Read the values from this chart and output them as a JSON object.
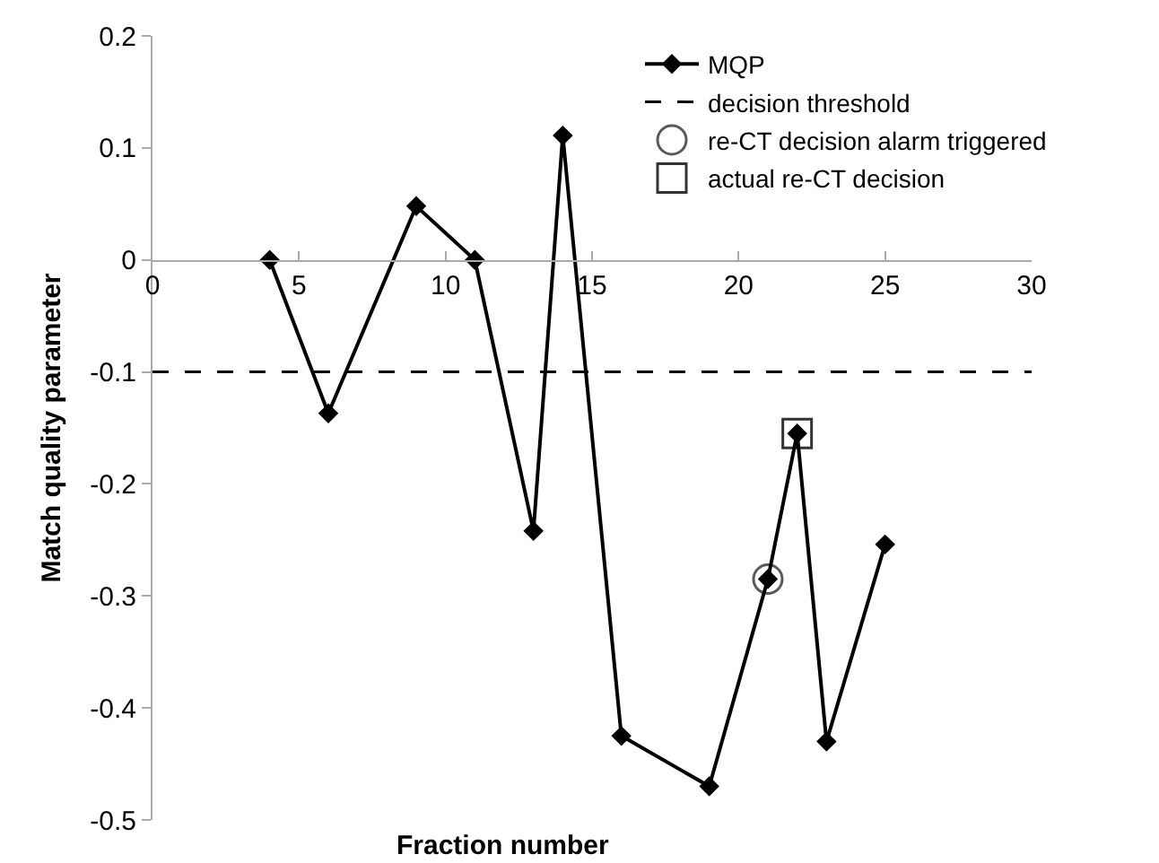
{
  "chart_data": {
    "type": "line",
    "xlabel": "Fraction number",
    "ylabel": "Match quality parameter",
    "series": [
      {
        "name": "MQP",
        "color": "#000000",
        "marker": "diamond",
        "x": [
          4,
          6,
          9,
          11,
          13,
          14,
          16,
          19,
          21,
          22,
          23,
          25
        ],
        "values": [
          0,
          -0.137,
          0.048,
          0,
          -0.242,
          0.111,
          -0.425,
          -0.47,
          -0.285,
          -0.155,
          -0.43,
          -0.254
        ]
      },
      {
        "name": "re-CT decision alarm triggered",
        "color": "#595959",
        "type": "scatter",
        "marker": "circle",
        "x": [
          21
        ],
        "values": [
          -0.285
        ]
      },
      {
        "name": "actual re-CT decision",
        "color": "#333333",
        "type": "scatter",
        "marker": "square",
        "x": [
          22
        ],
        "values": [
          -0.155
        ]
      }
    ],
    "ref_lines": [
      {
        "axis": "y",
        "value": -0.1,
        "label": "decision threshold",
        "color": "#000000",
        "line_style": "dashed"
      }
    ],
    "xlim": [
      0,
      30
    ],
    "xticks": [
      0,
      5,
      10,
      15,
      20,
      25,
      30
    ],
    "ylim": [
      -0.5,
      0.2
    ],
    "yticks": [
      -0.5,
      -0.4,
      -0.3,
      -0.2,
      -0.1,
      0,
      0.1,
      0.2
    ],
    "legend": "top right"
  }
}
